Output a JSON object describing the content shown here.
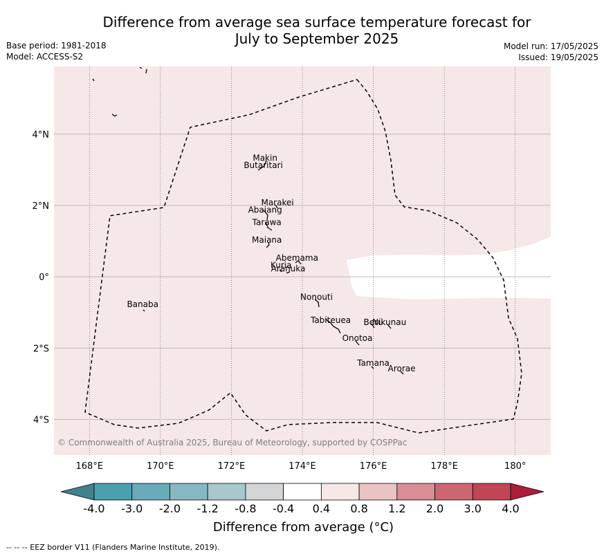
{
  "header": {
    "title_line1": "Difference from average sea surface temperature forecast for",
    "title_line2": "July to September 2025",
    "base_period": "Base period: 1981-2018",
    "model": "Model: ACCESS-S2",
    "model_run": "Model run: 17/05/2025",
    "issued": "Issued: 19/05/2025"
  },
  "map": {
    "background_color": "#f5e8e6",
    "lon_range": [
      167.0,
      181.0
    ],
    "lat_range": [
      -5.0,
      5.9
    ],
    "lon_ticks": [
      {
        "value": 168,
        "label": "168°E"
      },
      {
        "value": 170,
        "label": "170°E"
      },
      {
        "value": 172,
        "label": "172°E"
      },
      {
        "value": 174,
        "label": "174°E"
      },
      {
        "value": 176,
        "label": "176°E"
      },
      {
        "value": 178,
        "label": "178°E"
      },
      {
        "value": 180,
        "label": "180°"
      }
    ],
    "lat_ticks": [
      {
        "value": 4,
        "label": "4°N"
      },
      {
        "value": 2,
        "label": "2°N"
      },
      {
        "value": 0,
        "label": "0°"
      },
      {
        "value": -2,
        "label": "2°S"
      },
      {
        "value": -4,
        "label": "4°S"
      }
    ],
    "islands": [
      {
        "name": "Makin",
        "lon": 172.95,
        "lat": 3.25
      },
      {
        "name": "Butaritari",
        "lon": 172.9,
        "lat": 3.05
      },
      {
        "name": "Marakei",
        "lon": 173.3,
        "lat": 2.0
      },
      {
        "name": "Abaiang",
        "lon": 172.95,
        "lat": 1.8
      },
      {
        "name": "Tarawa",
        "lon": 173.0,
        "lat": 1.45
      },
      {
        "name": "Maiana",
        "lon": 173.0,
        "lat": 0.95
      },
      {
        "name": "Abemama",
        "lon": 173.85,
        "lat": 0.45
      },
      {
        "name": "Kuria",
        "lon": 173.4,
        "lat": 0.25
      },
      {
        "name": "Aranuka",
        "lon": 173.6,
        "lat": 0.15
      },
      {
        "name": "Nonouti",
        "lon": 174.4,
        "lat": -0.65
      },
      {
        "name": "Tabiteuea",
        "lon": 174.8,
        "lat": -1.3
      },
      {
        "name": "Beru",
        "lon": 176.0,
        "lat": -1.35
      },
      {
        "name": "Nikunau",
        "lon": 176.45,
        "lat": -1.35
      },
      {
        "name": "Onotoa",
        "lon": 175.55,
        "lat": -1.8
      },
      {
        "name": "Tamana",
        "lon": 176.0,
        "lat": -2.5
      },
      {
        "name": "Arorae",
        "lon": 176.8,
        "lat": -2.65
      },
      {
        "name": "Banaba",
        "lon": 169.5,
        "lat": -0.85
      }
    ],
    "copyright": "© Commonwealth of Australia 2025, Bureau of Meteorology, supported by COSPPac"
  },
  "colorbar": {
    "labels": [
      "-4.0",
      "-3.0",
      "-2.0",
      "-1.2",
      "-0.8",
      "-0.4",
      "0.4",
      "0.8",
      "1.2",
      "2.0",
      "3.0",
      "4.0"
    ],
    "colors": [
      "#3d828d",
      "#4aa0ae",
      "#69abb8",
      "#87b7c1",
      "#a8c8cc",
      "#d3d5d6",
      "#ffffff",
      "#f5e8e6",
      "#e8c5c2",
      "#d98d94",
      "#cd6671",
      "#c14554",
      "#ab1e38"
    ],
    "title": "Difference from average (°C)"
  },
  "footer": {
    "legend": "-- --  -- EEZ border V11 (Flanders Marine Institute, 2019)."
  }
}
